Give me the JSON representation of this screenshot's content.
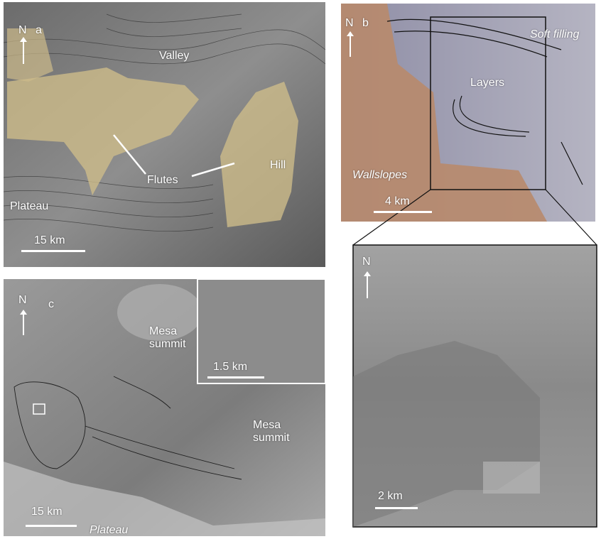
{
  "panels": [
    {
      "letter": "a",
      "north": "N",
      "scale": "15 km",
      "labels": [
        "Valley",
        "Flutes",
        "Hill",
        "Plateau"
      ]
    },
    {
      "letter": "b",
      "north": "N",
      "scale": "4 km",
      "labels": [
        "Soft filling",
        "Layers",
        "Wallslopes"
      ]
    },
    {
      "letter": "c",
      "north": "N",
      "scale": "15 km",
      "inset_scale": "1.5 km",
      "labels": [
        "Mesa summit",
        "Mesa summit",
        "Plateau"
      ]
    },
    {
      "north": "N",
      "scale": "2 km"
    }
  ]
}
